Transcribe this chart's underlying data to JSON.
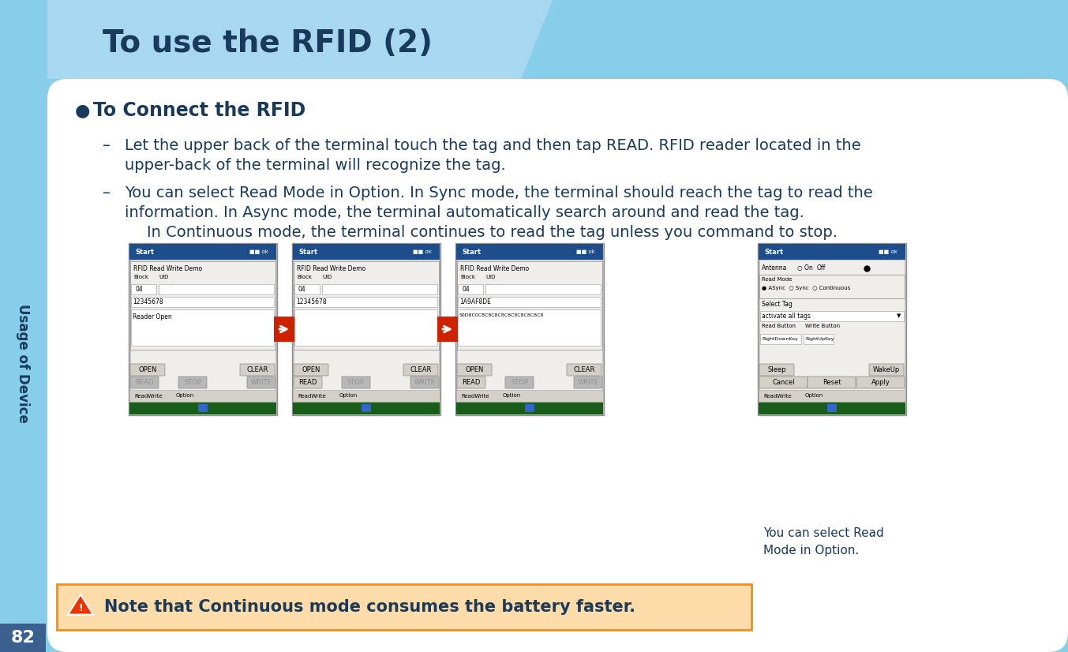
{
  "title": "To use the RFID (2)",
  "title_color": "#1a3a5c",
  "header_bg_color": "#87CEEB",
  "sidebar_color": "#87CEEB",
  "body_bg_color": "#ffffff",
  "page_number": "82",
  "page_number_color": "#ffffff",
  "sidebar_text": "Usage of Device",
  "bullet_header": "To Connect the RFID",
  "text_color": "#1a3a5c",
  "dash_line1a": "Let the upper back of the terminal touch the tag and then tap READ. RFID reader located in the",
  "dash_line1b": "upper-back of the terminal will recognize the tag.",
  "dash_line2a": "You can select Read Mode in Option. In Sync mode, the terminal should reach the tag to read the",
  "dash_line2b": "information. In Async mode, the terminal automatically search around and read the tag.",
  "dash_line2c": "In Continuous mode, the terminal continues to read the tag unless you command to stop.",
  "note_text": "Note that Continuous mode consumes the battery faster.",
  "note_bg_color": "#FDDCAA",
  "note_border_color": "#FF8C00",
  "note_text_color": "#1a3a5c",
  "callout_text": "You can select Read\nMode in Option.",
  "callout_color": "#1a3a5c",
  "figsize": [
    13.53,
    8.26
  ],
  "dpi": 100
}
